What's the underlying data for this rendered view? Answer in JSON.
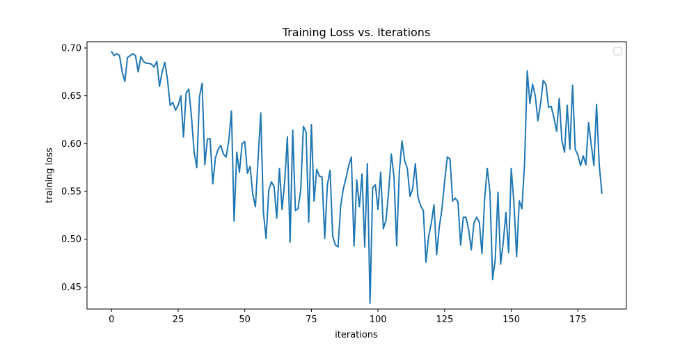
{
  "chart_data": {
    "type": "line",
    "title": "Training Loss vs. Iterations",
    "xlabel": "iterations",
    "ylabel": "training loss",
    "xlim": [
      -9.2,
      193.2
    ],
    "ylim": [
      0.427,
      0.7065
    ],
    "xticks": [
      0,
      25,
      50,
      75,
      100,
      125,
      150,
      175
    ],
    "yticks": [
      0.45,
      0.5,
      0.55,
      0.6,
      0.65,
      0.7
    ],
    "ytick_labels": [
      "0.45",
      "0.50",
      "0.55",
      "0.60",
      "0.65",
      "0.70"
    ],
    "grid": false,
    "legend": {
      "placement": "top-right",
      "entries": []
    },
    "series": [
      {
        "color": "#1f77b4",
        "x": [
          0,
          1,
          2,
          3,
          4,
          5,
          6,
          7,
          8,
          9,
          10,
          11,
          12,
          13,
          14,
          15,
          16,
          17,
          18,
          19,
          20,
          21,
          22,
          23,
          24,
          25,
          26,
          27,
          28,
          29,
          30,
          31,
          32,
          33,
          34,
          35,
          36,
          37,
          38,
          39,
          40,
          41,
          42,
          43,
          44,
          45,
          46,
          47,
          48,
          49,
          50,
          51,
          52,
          53,
          54,
          55,
          56,
          57,
          58,
          59,
          60,
          61,
          62,
          63,
          64,
          65,
          66,
          67,
          68,
          69,
          70,
          71,
          72,
          73,
          74,
          75,
          76,
          77,
          78,
          79,
          80,
          81,
          82,
          83,
          84,
          85,
          86,
          87,
          88,
          89,
          90,
          91,
          92,
          93,
          94,
          95,
          96,
          97,
          98,
          99,
          100,
          101,
          102,
          103,
          104,
          105,
          106,
          107,
          108,
          109,
          110,
          111,
          112,
          113,
          114,
          115,
          116,
          117,
          118,
          119,
          120,
          121,
          122,
          123,
          124,
          125,
          126,
          127,
          128,
          129,
          130,
          131,
          132,
          133,
          134,
          135,
          136,
          137,
          138,
          139,
          140,
          141,
          142,
          143,
          144,
          145,
          146,
          147,
          148,
          149,
          150,
          151,
          152,
          153,
          154,
          155,
          156,
          157,
          158,
          159,
          160,
          161,
          162,
          163,
          164,
          165,
          166,
          167,
          168,
          169,
          170,
          171,
          172,
          173,
          174,
          175,
          176,
          177,
          178,
          179,
          180,
          181,
          182,
          183,
          184
        ],
        "values": [
          0.696,
          0.692,
          0.694,
          0.692,
          0.675,
          0.665,
          0.69,
          0.692,
          0.694,
          0.692,
          0.675,
          0.691,
          0.686,
          0.684,
          0.684,
          0.683,
          0.68,
          0.686,
          0.66,
          0.675,
          0.685,
          0.667,
          0.64,
          0.643,
          0.635,
          0.64,
          0.65,
          0.607,
          0.653,
          0.657,
          0.628,
          0.591,
          0.575,
          0.649,
          0.663,
          0.578,
          0.605,
          0.605,
          0.558,
          0.585,
          0.594,
          0.598,
          0.589,
          0.586,
          0.603,
          0.634,
          0.519,
          0.591,
          0.57,
          0.6,
          0.602,
          0.569,
          0.576,
          0.547,
          0.534,
          0.584,
          0.632,
          0.528,
          0.501,
          0.551,
          0.56,
          0.555,
          0.522,
          0.574,
          0.531,
          0.561,
          0.607,
          0.497,
          0.614,
          0.53,
          0.532,
          0.552,
          0.618,
          0.612,
          0.518,
          0.62,
          0.54,
          0.573,
          0.566,
          0.565,
          0.501,
          0.557,
          0.572,
          0.503,
          0.494,
          0.492,
          0.535,
          0.553,
          0.564,
          0.577,
          0.586,
          0.493,
          0.562,
          0.534,
          0.568,
          0.492,
          0.579,
          0.433,
          0.554,
          0.557,
          0.531,
          0.57,
          0.511,
          0.52,
          0.55,
          0.589,
          0.565,
          0.493,
          0.571,
          0.603,
          0.582,
          0.574,
          0.545,
          0.553,
          0.579,
          0.544,
          0.535,
          0.53,
          0.476,
          0.503,
          0.517,
          0.536,
          0.484,
          0.513,
          0.532,
          0.561,
          0.586,
          0.584,
          0.54,
          0.543,
          0.539,
          0.494,
          0.523,
          0.523,
          0.51,
          0.489,
          0.517,
          0.523,
          0.518,
          0.485,
          0.542,
          0.574,
          0.549,
          0.458,
          0.479,
          0.549,
          0.474,
          0.497,
          0.528,
          0.486,
          0.574,
          0.538,
          0.482,
          0.54,
          0.532,
          0.58,
          0.676,
          0.642,
          0.662,
          0.65,
          0.624,
          0.642,
          0.666,
          0.662,
          0.638,
          0.639,
          0.627,
          0.613,
          0.647,
          0.603,
          0.591,
          0.64,
          0.594,
          0.661,
          0.594,
          0.588,
          0.577,
          0.587,
          0.578,
          0.622,
          0.599,
          0.577,
          0.641,
          0.578,
          0.548
        ]
      }
    ]
  }
}
